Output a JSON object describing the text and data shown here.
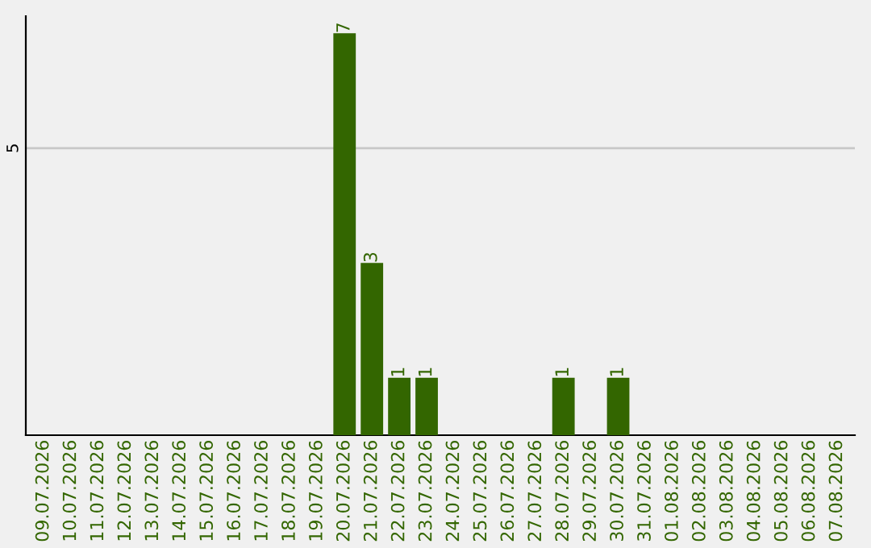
{
  "chart_data": {
    "type": "bar",
    "categories": [
      "09.07.2026",
      "10.07.2026",
      "11.07.2026",
      "12.07.2026",
      "13.07.2026",
      "14.07.2026",
      "15.07.2026",
      "16.07.2026",
      "17.07.2026",
      "18.07.2026",
      "19.07.2026",
      "20.07.2026",
      "21.07.2026",
      "22.07.2026",
      "23.07.2026",
      "24.07.2026",
      "25.07.2026",
      "26.07.2026",
      "27.07.2026",
      "28.07.2026",
      "29.07.2026",
      "30.07.2026",
      "31.07.2026",
      "01.08.2026",
      "02.08.2026",
      "03.08.2026",
      "04.08.2026",
      "05.08.2026",
      "06.08.2026",
      "07.08.2026"
    ],
    "values": [
      0,
      0,
      0,
      0,
      0,
      0,
      0,
      0,
      0,
      0,
      0,
      7,
      3,
      1,
      1,
      0,
      0,
      0,
      0,
      1,
      0,
      1,
      0,
      0,
      0,
      0,
      0,
      0,
      0,
      0
    ],
    "value_labels": [
      null,
      null,
      null,
      null,
      null,
      null,
      null,
      null,
      null,
      null,
      null,
      "7",
      "3",
      "1",
      "1",
      null,
      null,
      null,
      null,
      "1",
      null,
      "1",
      null,
      null,
      null,
      null,
      null,
      null,
      null,
      null
    ],
    "color": "#336600",
    "ylim": [
      0,
      7.3
    ],
    "yticks": [
      5
    ],
    "grid": "y",
    "legend": false
  }
}
